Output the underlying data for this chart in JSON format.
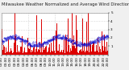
{
  "title": "Milwaukee Weather Normalized and Average Wind Direction (Last 24 Hours)",
  "ylim": [
    0,
    5
  ],
  "yticks": [
    1,
    2,
    3,
    4,
    5
  ],
  "n_points": 288,
  "background_color": "#f0f0f0",
  "plot_bg_color": "#ffffff",
  "bar_color": "#dd0000",
  "dot_color": "#0000cc",
  "grid_color": "#aaaaaa",
  "title_fontsize": 3.8,
  "tick_fontsize": 3.0,
  "seed": 42
}
